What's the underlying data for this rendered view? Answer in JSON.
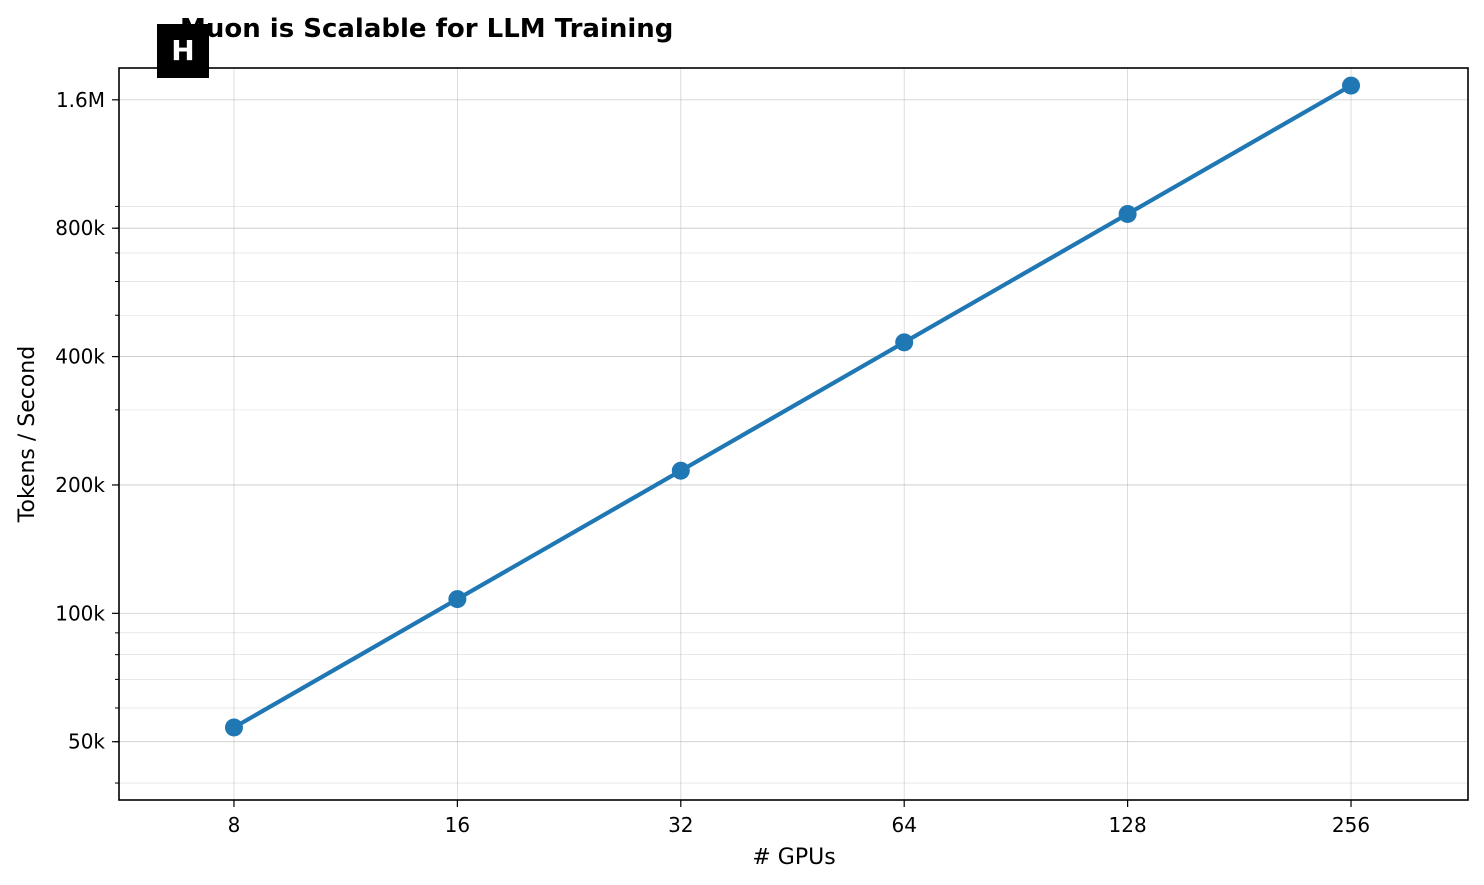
{
  "logo": {
    "letter": "H"
  },
  "chart_data": {
    "type": "line",
    "title": "Muon is Scalable for LLM Training",
    "xlabel": "# GPUs",
    "ylabel": "Tokens / Second",
    "x_scale": "log2",
    "y_scale": "log",
    "grid": true,
    "x": [
      8,
      16,
      32,
      64,
      128,
      256
    ],
    "x_tick_labels": [
      "8",
      "16",
      "32",
      "64",
      "128",
      "256"
    ],
    "y_ticks": [
      50000,
      100000,
      200000,
      400000,
      800000,
      1600000
    ],
    "y_tick_labels": [
      "50k",
      "100k",
      "200k",
      "400k",
      "800k",
      "1.6M"
    ],
    "xlim": [
      5.6,
      368
    ],
    "ylim": [
      36500,
      1900000
    ],
    "series": [
      {
        "values": [
          54000,
          108000,
          216000,
          432000,
          864000,
          1728000
        ],
        "color": "#1f77b4"
      }
    ]
  }
}
